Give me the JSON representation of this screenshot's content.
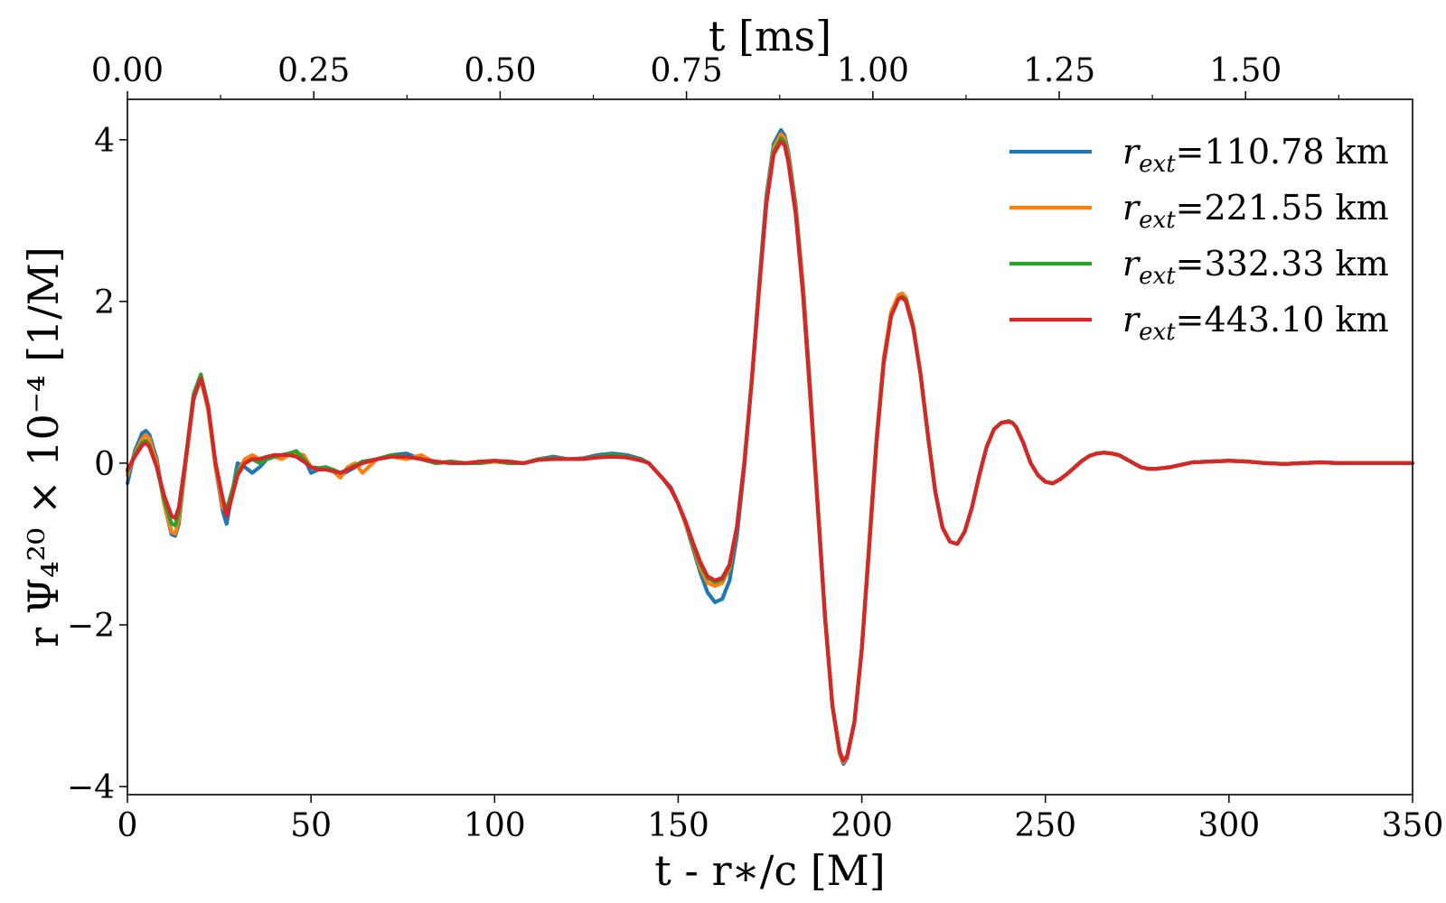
{
  "chart_data": {
    "type": "line",
    "xlabel": "t - r∗/c [M]",
    "ylabel": "r Ψ₄²⁰ × 10⁻⁴ [1/M]",
    "top_xlabel": "t [ms]",
    "xlim": [
      0,
      350
    ],
    "ylim": [
      -4.1,
      4.5
    ],
    "x_ticks": [
      0,
      50,
      100,
      150,
      200,
      250,
      300,
      350
    ],
    "x_tick_labels": [
      "0",
      "50",
      "100",
      "150",
      "200",
      "250",
      "300",
      "350"
    ],
    "y_ticks": [
      -4,
      -2,
      0,
      2,
      4
    ],
    "y_tick_labels": [
      "−4",
      "−2",
      "0",
      "2",
      "4"
    ],
    "top_x_ticks": [
      0.0,
      0.25,
      0.5,
      0.75,
      1.0,
      1.25,
      1.5
    ],
    "top_x_tick_labels": [
      "0.00",
      "0.25",
      "0.50",
      "0.75",
      "1.00",
      "1.25",
      "1.50"
    ],
    "top_xlim": [
      0,
      1.724
    ],
    "grid": false,
    "legend_position": "top-right",
    "legend_prefix": "r",
    "legend_subscript": "ext",
    "series": [
      {
        "name": "r_ext=110.78 km",
        "legend_value": "=110.78 km",
        "color": "#1f77b4",
        "x": [
          0,
          2,
          4,
          5,
          6,
          8,
          10,
          12,
          13,
          14,
          16,
          18,
          20,
          22,
          24,
          26,
          27,
          28,
          30,
          32,
          34,
          36,
          38,
          40,
          42,
          44,
          46,
          48,
          50,
          52,
          54,
          56,
          58,
          60,
          64,
          68,
          72,
          76,
          80,
          84,
          88,
          92,
          96,
          100,
          104,
          108,
          112,
          116,
          120,
          124,
          128,
          132,
          136,
          140,
          142,
          144,
          146,
          148,
          150,
          152,
          154,
          156,
          158,
          160,
          162,
          164,
          166,
          168,
          170,
          172,
          174,
          176,
          178,
          179,
          180,
          182,
          184,
          186,
          188,
          190,
          192,
          194,
          195,
          196,
          198,
          200,
          202,
          204,
          206,
          208,
          210,
          211,
          212,
          214,
          216,
          218,
          220,
          222,
          224,
          226,
          228,
          230,
          232,
          234,
          236,
          238,
          240,
          241,
          242,
          244,
          246,
          248,
          250,
          252,
          254,
          256,
          258,
          260,
          262,
          264,
          266,
          268,
          270,
          272,
          274,
          276,
          278,
          280,
          282,
          284,
          286,
          288,
          290,
          295,
          300,
          305,
          310,
          315,
          320,
          325,
          330,
          335,
          340,
          345,
          350
        ],
        "y": [
          -0.25,
          0.15,
          0.37,
          0.4,
          0.35,
          0.05,
          -0.5,
          -0.88,
          -0.9,
          -0.75,
          0.05,
          0.78,
          1.08,
          0.7,
          -0.05,
          -0.6,
          -0.75,
          -0.5,
          0.0,
          -0.05,
          -0.12,
          -0.05,
          0.05,
          0.08,
          0.1,
          0.12,
          0.1,
          0.08,
          -0.12,
          -0.08,
          -0.05,
          -0.1,
          -0.15,
          -0.1,
          0.0,
          0.05,
          0.1,
          0.12,
          0.05,
          0.0,
          0.02,
          0.0,
          0.0,
          0.02,
          0.0,
          0.0,
          0.05,
          0.08,
          0.05,
          0.06,
          0.1,
          0.12,
          0.1,
          0.05,
          0.0,
          -0.1,
          -0.2,
          -0.3,
          -0.5,
          -0.75,
          -1.05,
          -1.35,
          -1.6,
          -1.72,
          -1.68,
          -1.45,
          -0.9,
          -0.05,
          1.0,
          2.2,
          3.3,
          3.95,
          4.12,
          4.05,
          3.85,
          3.2,
          2.2,
          0.9,
          -0.5,
          -1.9,
          -3.0,
          -3.6,
          -3.72,
          -3.65,
          -3.2,
          -2.3,
          -1.0,
          0.3,
          1.3,
          1.85,
          2.05,
          2.08,
          2.05,
          1.7,
          1.1,
          0.35,
          -0.35,
          -0.8,
          -0.97,
          -1.0,
          -0.85,
          -0.55,
          -0.15,
          0.2,
          0.42,
          0.5,
          0.52,
          0.5,
          0.45,
          0.25,
          0.0,
          -0.15,
          -0.23,
          -0.25,
          -0.2,
          -0.13,
          -0.05,
          0.03,
          0.09,
          0.12,
          0.13,
          0.12,
          0.1,
          0.05,
          0.0,
          -0.05,
          -0.07,
          -0.07,
          -0.06,
          -0.05,
          -0.03,
          -0.01,
          0.01,
          0.02,
          0.03,
          0.02,
          0.0,
          -0.01,
          0.0,
          0.01,
          0.0,
          0.0,
          0.0,
          0.0,
          0.0
        ]
      },
      {
        "name": "r_ext=221.55 km",
        "legend_value": "=221.55 km",
        "color": "#ff7f0e",
        "x": [
          0,
          2,
          4,
          5,
          6,
          8,
          10,
          12,
          13,
          14,
          16,
          18,
          20,
          22,
          24,
          26,
          27,
          28,
          30,
          32,
          34,
          36,
          38,
          40,
          42,
          44,
          46,
          48,
          50,
          52,
          54,
          56,
          58,
          60,
          62,
          64,
          68,
          72,
          76,
          80,
          84,
          88,
          92,
          96,
          100,
          104,
          108,
          112,
          116,
          120,
          124,
          128,
          132,
          136,
          140,
          142,
          144,
          146,
          148,
          150,
          152,
          154,
          156,
          158,
          160,
          162,
          164,
          166,
          168,
          170,
          172,
          174,
          176,
          178,
          179,
          180,
          182,
          184,
          186,
          188,
          190,
          192,
          194,
          195,
          196,
          198,
          200,
          202,
          204,
          206,
          208,
          210,
          211,
          212,
          214,
          216,
          218,
          220,
          222,
          224,
          226,
          228,
          230,
          232,
          234,
          236,
          238,
          240,
          241,
          242,
          244,
          246,
          248,
          250,
          252,
          254,
          256,
          258,
          260,
          262,
          264,
          266,
          268,
          270,
          272,
          274,
          276,
          278,
          280,
          282,
          284,
          286,
          288,
          290,
          295,
          300,
          305,
          310,
          315,
          320,
          325,
          330,
          335,
          340,
          345,
          350
        ],
        "y": [
          -0.15,
          0.12,
          0.3,
          0.35,
          0.3,
          0.0,
          -0.5,
          -0.85,
          -0.87,
          -0.7,
          0.05,
          0.8,
          1.05,
          0.65,
          -0.05,
          -0.55,
          -0.6,
          -0.45,
          -0.1,
          0.05,
          0.1,
          0.05,
          0.05,
          0.08,
          0.05,
          0.1,
          0.12,
          0.1,
          -0.05,
          -0.08,
          -0.05,
          -0.1,
          -0.18,
          -0.05,
          0.0,
          -0.12,
          0.05,
          0.08,
          0.05,
          0.1,
          0.0,
          0.02,
          0.0,
          0.0,
          0.02,
          0.0,
          0.0,
          0.05,
          0.06,
          0.05,
          0.05,
          0.08,
          0.1,
          0.08,
          0.04,
          0.0,
          -0.1,
          -0.2,
          -0.32,
          -0.5,
          -0.75,
          -1.02,
          -1.3,
          -1.48,
          -1.52,
          -1.48,
          -1.3,
          -0.8,
          0.0,
          1.0,
          2.15,
          3.25,
          3.9,
          4.07,
          4.02,
          3.8,
          3.15,
          2.15,
          0.85,
          -0.5,
          -1.9,
          -3.0,
          -3.6,
          -3.7,
          -3.63,
          -3.2,
          -2.3,
          -1.0,
          0.3,
          1.3,
          1.87,
          2.08,
          2.1,
          2.05,
          1.7,
          1.1,
          0.35,
          -0.35,
          -0.8,
          -0.97,
          -1.0,
          -0.85,
          -0.55,
          -0.15,
          0.2,
          0.42,
          0.5,
          0.52,
          0.5,
          0.45,
          0.25,
          0.0,
          -0.15,
          -0.23,
          -0.25,
          -0.2,
          -0.13,
          -0.05,
          0.03,
          0.09,
          0.12,
          0.13,
          0.12,
          0.1,
          0.05,
          0.0,
          -0.05,
          -0.07,
          -0.07,
          -0.06,
          -0.05,
          -0.03,
          -0.01,
          0.01,
          0.02,
          0.03,
          0.02,
          0.0,
          -0.01,
          0.0,
          0.01,
          0.0,
          0.0,
          0.0,
          0.0,
          0.0
        ]
      },
      {
        "name": "r_ext=332.33 km",
        "legend_value": "=332.33 km",
        "color": "#2ca02c",
        "x": [
          0,
          2,
          4,
          5,
          6,
          8,
          10,
          12,
          13,
          14,
          16,
          18,
          20,
          22,
          24,
          26,
          27,
          28,
          30,
          32,
          34,
          36,
          38,
          40,
          42,
          44,
          46,
          48,
          50,
          52,
          54,
          56,
          58,
          60,
          64,
          68,
          72,
          76,
          80,
          84,
          88,
          92,
          96,
          100,
          104,
          108,
          112,
          116,
          120,
          124,
          128,
          132,
          136,
          140,
          142,
          144,
          146,
          148,
          150,
          152,
          154,
          156,
          158,
          160,
          162,
          164,
          166,
          168,
          170,
          172,
          174,
          176,
          178,
          179,
          180,
          182,
          184,
          186,
          188,
          190,
          192,
          194,
          195,
          196,
          198,
          200,
          202,
          204,
          206,
          208,
          210,
          211,
          212,
          214,
          216,
          218,
          220,
          222,
          224,
          226,
          228,
          230,
          232,
          234,
          236,
          238,
          240,
          241,
          242,
          244,
          246,
          248,
          250,
          252,
          254,
          256,
          258,
          260,
          262,
          264,
          266,
          268,
          270,
          272,
          274,
          276,
          278,
          280,
          282,
          284,
          286,
          288,
          290,
          295,
          300,
          305,
          310,
          315,
          320,
          325,
          330,
          335,
          340,
          345,
          350
        ],
        "y": [
          -0.1,
          0.1,
          0.25,
          0.28,
          0.22,
          -0.05,
          -0.45,
          -0.75,
          -0.77,
          -0.62,
          0.1,
          0.85,
          1.1,
          0.7,
          0.0,
          -0.45,
          -0.58,
          -0.42,
          -0.1,
          0.0,
          0.05,
          0.0,
          0.05,
          0.08,
          0.1,
          0.12,
          0.15,
          0.05,
          -0.05,
          -0.06,
          -0.05,
          -0.08,
          -0.12,
          -0.08,
          0.02,
          0.05,
          0.1,
          0.08,
          0.05,
          0.0,
          0.02,
          0.0,
          0.0,
          0.03,
          0.0,
          0.0,
          0.05,
          0.06,
          0.05,
          0.05,
          0.08,
          0.1,
          0.08,
          0.04,
          0.0,
          -0.1,
          -0.2,
          -0.32,
          -0.5,
          -0.73,
          -1.0,
          -1.25,
          -1.42,
          -1.47,
          -1.44,
          -1.27,
          -0.8,
          0.0,
          1.0,
          2.15,
          3.22,
          3.85,
          4.02,
          3.97,
          3.75,
          3.1,
          2.1,
          0.82,
          -0.52,
          -1.9,
          -3.0,
          -3.58,
          -3.68,
          -3.62,
          -3.2,
          -2.3,
          -1.05,
          0.25,
          1.25,
          1.82,
          2.03,
          2.06,
          2.02,
          1.68,
          1.1,
          0.35,
          -0.35,
          -0.8,
          -0.97,
          -1.0,
          -0.85,
          -0.55,
          -0.15,
          0.2,
          0.42,
          0.5,
          0.52,
          0.5,
          0.45,
          0.25,
          0.0,
          -0.15,
          -0.23,
          -0.25,
          -0.2,
          -0.13,
          -0.05,
          0.03,
          0.09,
          0.12,
          0.13,
          0.12,
          0.1,
          0.05,
          0.0,
          -0.05,
          -0.07,
          -0.07,
          -0.06,
          -0.05,
          -0.03,
          -0.01,
          0.01,
          0.02,
          0.03,
          0.02,
          0.0,
          -0.01,
          0.0,
          0.01,
          0.0,
          0.0,
          0.0,
          0.0,
          0.0
        ]
      },
      {
        "name": "r_ext=443.10 km",
        "legend_value": "=443.10 km",
        "color": "#d62728",
        "x": [
          0,
          2,
          4,
          5,
          6,
          8,
          10,
          12,
          13,
          14,
          16,
          18,
          20,
          22,
          24,
          26,
          27,
          28,
          30,
          32,
          34,
          36,
          38,
          40,
          42,
          44,
          46,
          48,
          50,
          52,
          54,
          56,
          58,
          60,
          64,
          68,
          72,
          76,
          80,
          84,
          88,
          92,
          96,
          100,
          104,
          108,
          112,
          116,
          120,
          124,
          128,
          132,
          136,
          140,
          142,
          144,
          146,
          148,
          150,
          152,
          154,
          156,
          158,
          160,
          162,
          164,
          166,
          168,
          170,
          172,
          174,
          176,
          178,
          179,
          180,
          182,
          184,
          186,
          188,
          190,
          192,
          194,
          195,
          196,
          198,
          200,
          202,
          204,
          206,
          208,
          210,
          211,
          212,
          214,
          216,
          218,
          220,
          222,
          224,
          226,
          228,
          230,
          232,
          234,
          236,
          238,
          240,
          241,
          242,
          244,
          246,
          248,
          250,
          252,
          254,
          256,
          258,
          260,
          262,
          264,
          266,
          268,
          270,
          272,
          274,
          276,
          278,
          280,
          282,
          284,
          286,
          288,
          290,
          295,
          300,
          305,
          310,
          315,
          320,
          325,
          330,
          335,
          340,
          345,
          350
        ],
        "y": [
          -0.08,
          0.08,
          0.22,
          0.25,
          0.2,
          -0.05,
          -0.4,
          -0.65,
          -0.68,
          -0.55,
          0.1,
          0.8,
          1.05,
          0.7,
          0.0,
          -0.45,
          -0.65,
          -0.5,
          -0.15,
          0.0,
          0.05,
          0.05,
          0.08,
          0.1,
          0.1,
          0.1,
          0.08,
          0.02,
          -0.05,
          -0.08,
          -0.08,
          -0.1,
          -0.12,
          -0.08,
          0.0,
          0.05,
          0.08,
          0.08,
          0.05,
          0.02,
          0.0,
          0.0,
          0.02,
          0.03,
          0.02,
          0.0,
          0.04,
          0.05,
          0.05,
          0.05,
          0.07,
          0.08,
          0.07,
          0.03,
          0.0,
          -0.1,
          -0.2,
          -0.32,
          -0.5,
          -0.72,
          -0.98,
          -1.22,
          -1.4,
          -1.45,
          -1.42,
          -1.25,
          -0.78,
          0.0,
          1.0,
          2.12,
          3.2,
          3.82,
          3.98,
          3.93,
          3.72,
          3.08,
          2.08,
          0.8,
          -0.55,
          -1.92,
          -3.0,
          -3.57,
          -3.68,
          -3.62,
          -3.2,
          -2.3,
          -1.05,
          0.25,
          1.25,
          1.82,
          2.03,
          2.05,
          2.0,
          1.67,
          1.1,
          0.35,
          -0.35,
          -0.8,
          -0.97,
          -1.0,
          -0.85,
          -0.55,
          -0.15,
          0.2,
          0.42,
          0.5,
          0.51,
          0.5,
          0.45,
          0.25,
          0.0,
          -0.15,
          -0.23,
          -0.25,
          -0.2,
          -0.13,
          -0.05,
          0.03,
          0.09,
          0.12,
          0.13,
          0.12,
          0.1,
          0.05,
          0.0,
          -0.05,
          -0.07,
          -0.07,
          -0.06,
          -0.05,
          -0.03,
          -0.01,
          0.01,
          0.02,
          0.03,
          0.02,
          0.0,
          -0.01,
          0.0,
          0.01,
          0.0,
          0.0,
          0.0,
          0.0,
          0.0
        ]
      }
    ]
  }
}
